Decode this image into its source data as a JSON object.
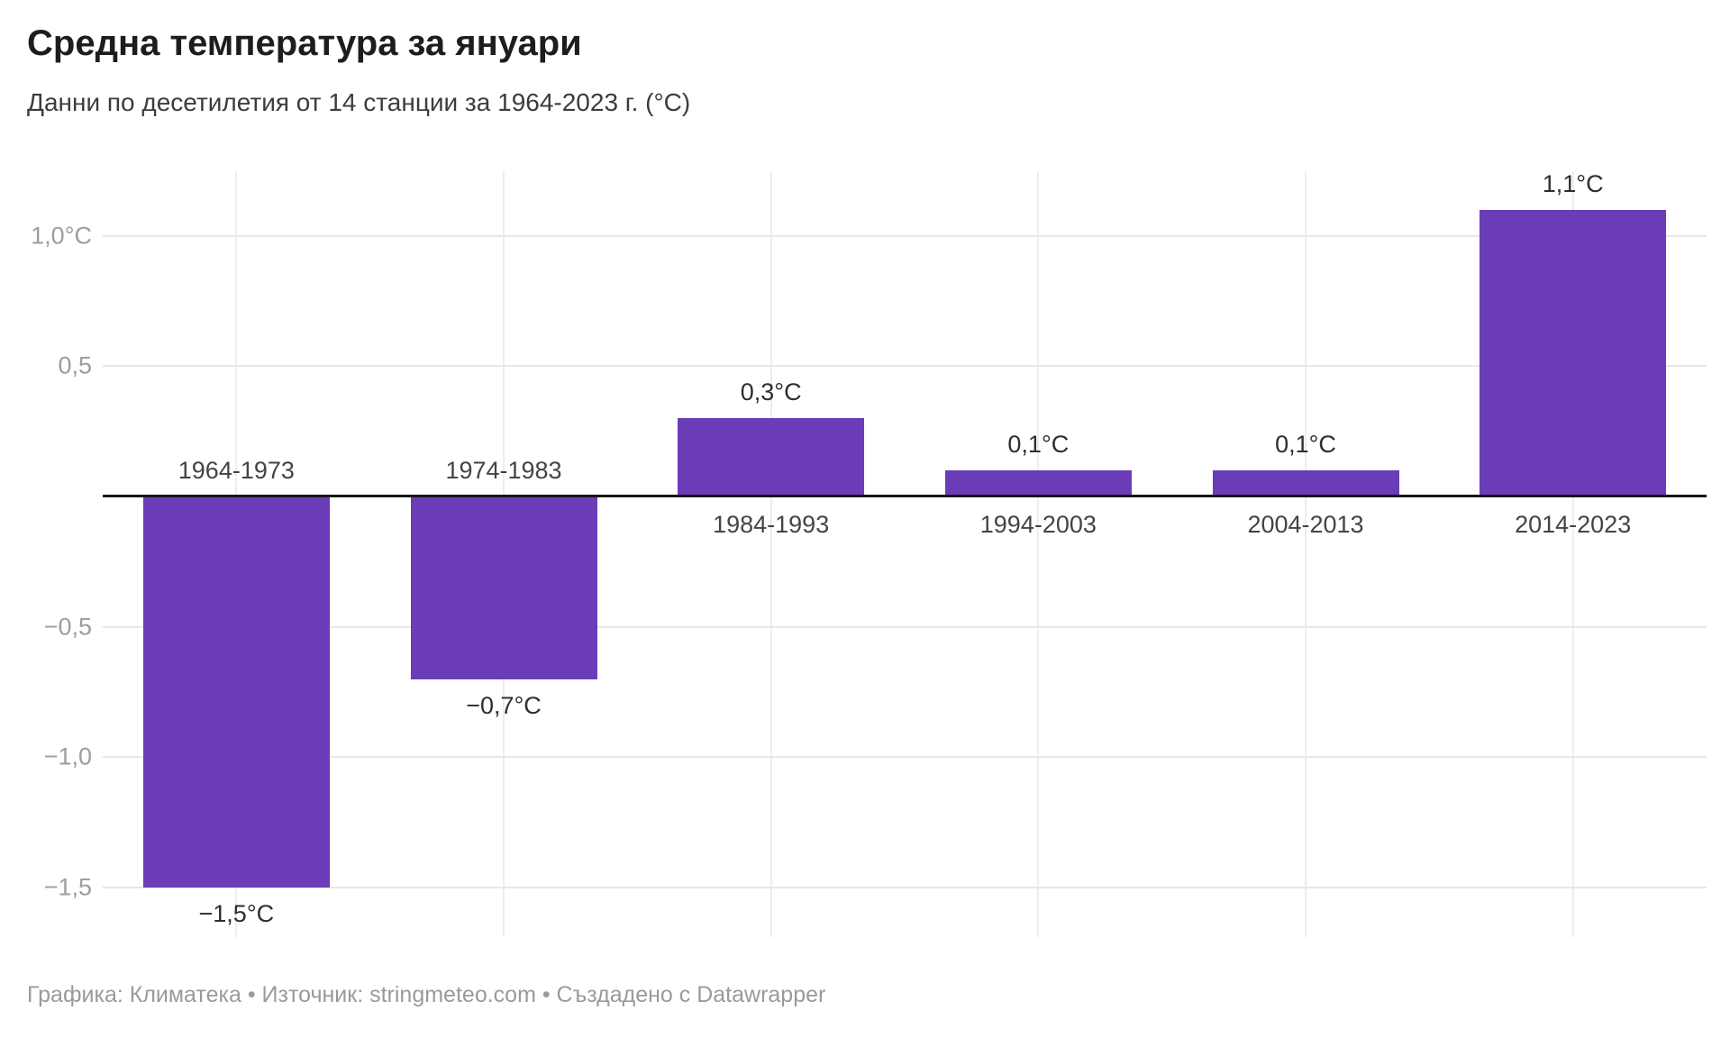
{
  "header": {
    "title": "Средна температура за януари",
    "subtitle": "Данни по десетилетия от 14 станции за 1964-2023 г. (°C)"
  },
  "chart_data": {
    "type": "bar",
    "title": "Средна температура за януари",
    "subtitle": "Данни по десетилетия от 14 станции за 1964-2023 г. (°C)",
    "categories": [
      "1964-1973",
      "1974-1983",
      "1984-1993",
      "1994-2003",
      "2004-2013",
      "2014-2023"
    ],
    "values": [
      -1.5,
      -0.7,
      0.3,
      0.1,
      0.1,
      1.1
    ],
    "value_labels": [
      "−1,5°C",
      "−0,7°C",
      "0,3°C",
      "0,1°C",
      "0,1°C",
      "1,1°C"
    ],
    "unit": "°C",
    "y_ticks": [
      {
        "value": 1.0,
        "label": "1,0°C"
      },
      {
        "value": 0.5,
        "label": "0,5"
      },
      {
        "value": 0.0,
        "label": ""
      },
      {
        "value": -0.5,
        "label": "−0,5"
      },
      {
        "value": -1.0,
        "label": "−1,0"
      },
      {
        "value": -1.5,
        "label": "−1,5"
      }
    ],
    "ylim": [
      -1.5,
      1.25
    ],
    "grid": true,
    "legend": "none",
    "bar_color": "#6a3cb8",
    "zero_line_color": "#161616"
  },
  "footer": {
    "text": "Графика: Климатека • Източник: stringmeteo.com • Създадено с Datawrapper"
  }
}
